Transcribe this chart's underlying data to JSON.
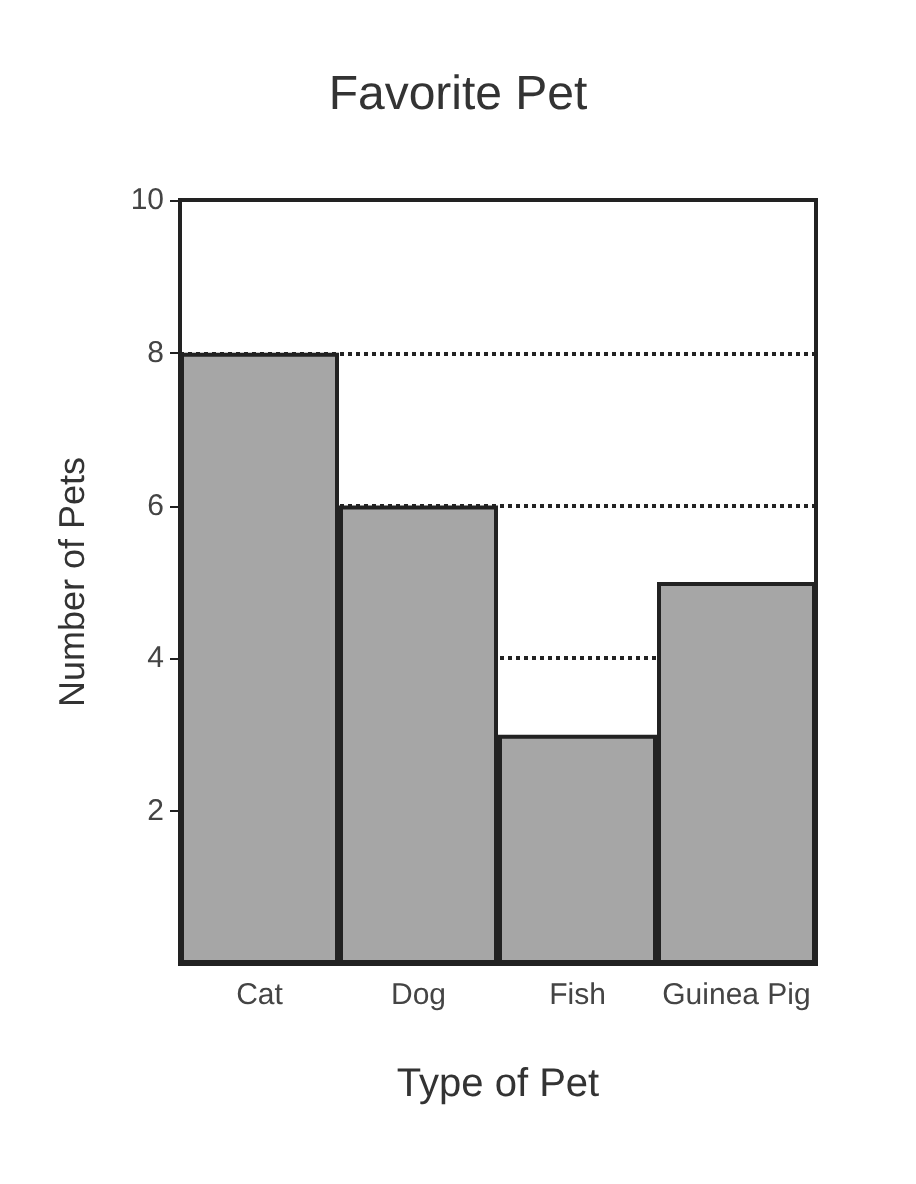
{
  "chart_data": {
    "type": "bar",
    "title": "Favorite Pet",
    "xlabel": "Type of Pet",
    "ylabel": "Number of Pets",
    "categories": [
      "Cat",
      "Dog",
      "Fish",
      "Guinea Pig"
    ],
    "values": [
      8,
      6,
      3,
      5
    ],
    "color": "#a6a6a6",
    "ylim": [
      0,
      10
    ],
    "yticks": [
      2,
      4,
      6,
      8,
      10
    ],
    "grid": "y"
  }
}
